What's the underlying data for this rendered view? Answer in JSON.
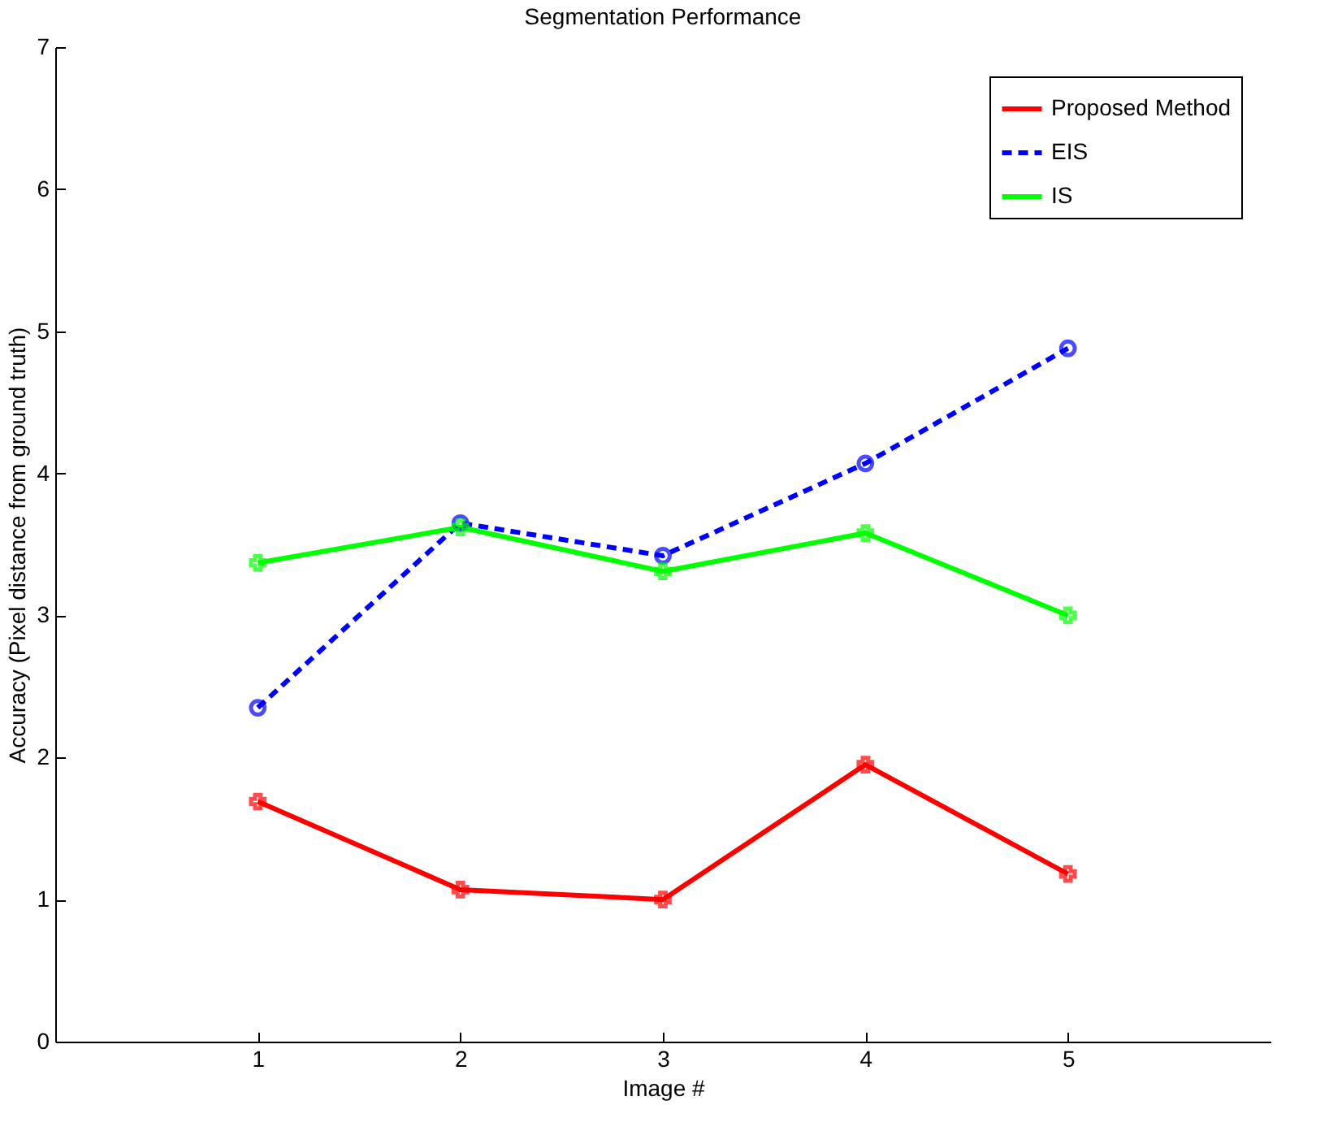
{
  "chart_data": {
    "type": "line",
    "title": "Segmentation Performance",
    "xlabel": "Image #",
    "ylabel": "Accuracy (Pixel distance from ground truth)",
    "x": [
      1,
      2,
      3,
      4,
      5
    ],
    "series": [
      {
        "name": "Proposed Method",
        "color": "#ff0000",
        "marker": "cross",
        "line_style": "solid",
        "values": [
          1.69,
          1.07,
          1.0,
          1.95,
          1.18
        ]
      },
      {
        "name": "EIS",
        "color": "#0000ff",
        "marker": "circle",
        "line_style": "dashed",
        "values": [
          2.35,
          3.65,
          3.42,
          4.07,
          4.88
        ]
      },
      {
        "name": "IS",
        "color": "#00ff00",
        "marker": "cross",
        "line_style": "solid",
        "values": [
          3.37,
          3.62,
          3.31,
          3.58,
          3.0
        ]
      }
    ],
    "xlim": [
      0,
      6
    ],
    "xticks": [
      1,
      2,
      3,
      4,
      5
    ],
    "ylim": [
      0,
      7
    ],
    "yticks": [
      0,
      1,
      2,
      3,
      4,
      5,
      6,
      7
    ],
    "grid": false,
    "legend": "top right"
  }
}
